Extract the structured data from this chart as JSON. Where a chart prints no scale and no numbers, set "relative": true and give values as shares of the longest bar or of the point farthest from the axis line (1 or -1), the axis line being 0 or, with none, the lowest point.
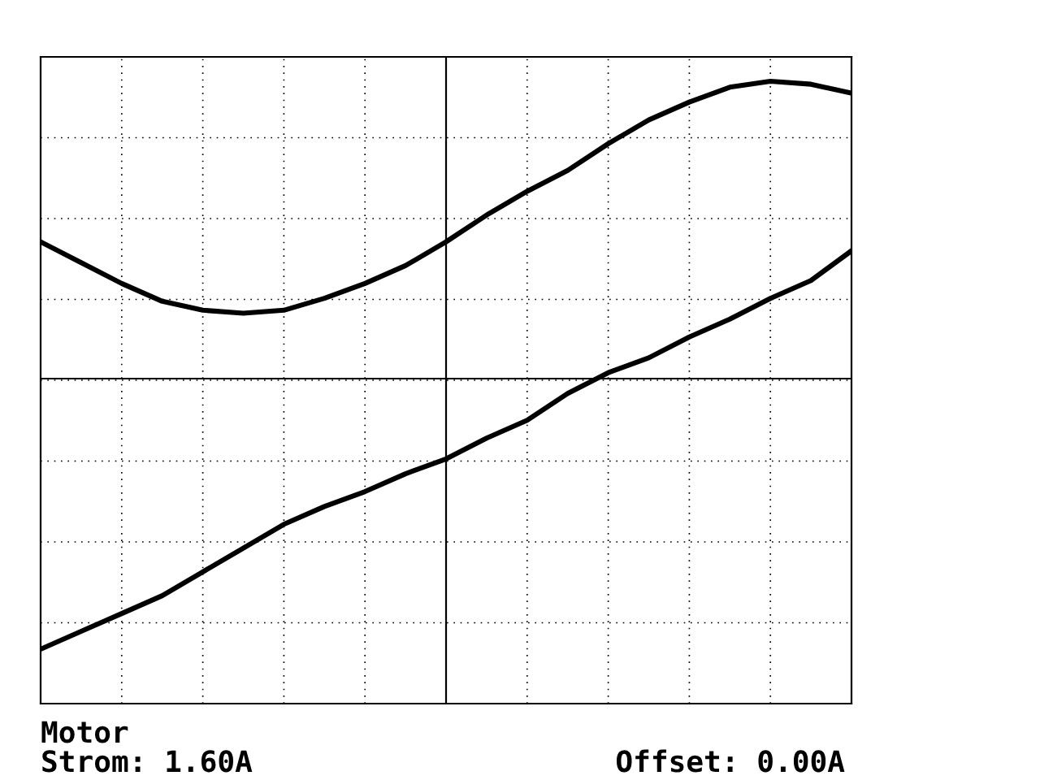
{
  "chart_data": {
    "type": "line",
    "relative": true,
    "grid": true,
    "legend": false,
    "marker": "none",
    "line_style": "solid",
    "categories": [
      null,
      null,
      null,
      null,
      null,
      null,
      null,
      null,
      null,
      null,
      null,
      null,
      null,
      null,
      null,
      null,
      null,
      null,
      null,
      null,
      null
    ],
    "series": [
      {
        "color": "#000000",
        "values": [
          0.46,
          0.39,
          0.32,
          0.26,
          0.23,
          0.22,
          0.23,
          0.27,
          0.32,
          0.38,
          0.46,
          0.55,
          0.63,
          0.7,
          0.79,
          0.87,
          0.93,
          0.98,
          1,
          0.99,
          0.96
        ]
      },
      {
        "color": "#000000",
        "values": [
          -0.91,
          -0.85,
          -0.79,
          -0.73,
          -0.65,
          -0.57,
          -0.49,
          -0.43,
          -0.38,
          -0.32,
          -0.27,
          -0.2,
          -0.14,
          -0.05,
          0.02,
          0.07,
          0.14,
          0.2,
          0.27,
          0.33,
          0.43
        ]
      }
    ],
    "annotations": [
      "Motor",
      "Strom: 1.60A",
      "Offset: 0.00A"
    ]
  }
}
